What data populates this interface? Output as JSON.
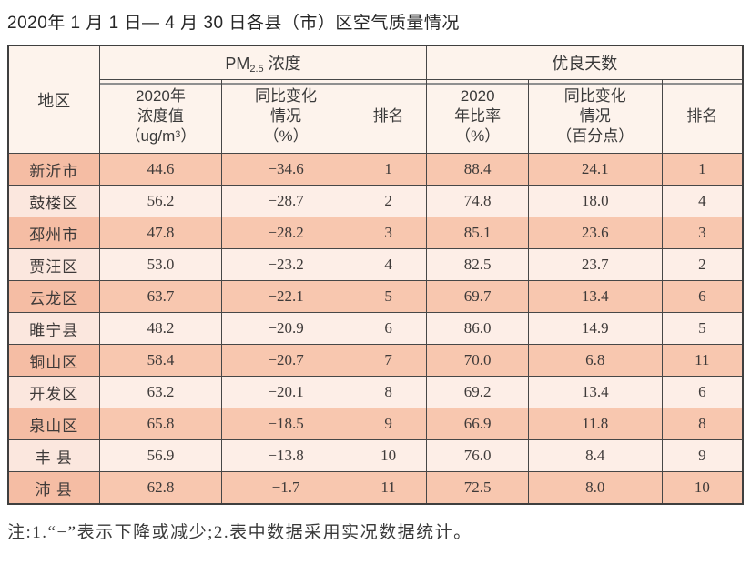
{
  "page": {
    "title": "2020年 1 月 1 日— 4 月 30 日各县（市）区空气质量情况",
    "footnote": "注:1.“−”表示下降或减少;2.表中数据采用实况数据统计。"
  },
  "table": {
    "corner_header": "地区",
    "groups": {
      "pm25": {
        "pre": "PM",
        "sub": "2.5",
        "post": " 浓度"
      },
      "good_days": {
        "label": "优良天数"
      }
    },
    "subheaders": {
      "pm_value": {
        "line1": "2020年",
        "line2": "浓度值",
        "line3_pre": "（ug/m",
        "sup": "3",
        "line3_post": "）"
      },
      "pm_change": {
        "line1": "同比变化",
        "line2": "情况",
        "line3": "（%）"
      },
      "pm_rank": "排名",
      "good_ratio": {
        "line1": "2020",
        "line2": "年比率",
        "line3": "（%）"
      },
      "good_change": {
        "line1": "同比变化",
        "line2": "情况",
        "line3": "（百分点）"
      },
      "good_rank": "排名"
    },
    "rows": [
      [
        "新沂市",
        "44.6",
        "−34.6",
        "1",
        "88.4",
        "24.1",
        "1"
      ],
      [
        "鼓楼区",
        "56.2",
        "−28.7",
        "2",
        "74.8",
        "18.0",
        "4"
      ],
      [
        "邳州市",
        "47.8",
        "−28.2",
        "3",
        "85.1",
        "23.6",
        "3"
      ],
      [
        "贾汪区",
        "53.0",
        "−23.2",
        "4",
        "82.5",
        "23.7",
        "2"
      ],
      [
        "云龙区",
        "63.7",
        "−22.1",
        "5",
        "69.7",
        "13.4",
        "6"
      ],
      [
        "睢宁县",
        "48.2",
        "−20.9",
        "6",
        "86.0",
        "14.9",
        "5"
      ],
      [
        "铜山区",
        "58.4",
        "−20.7",
        "7",
        "70.0",
        "6.8",
        "11"
      ],
      [
        "开发区",
        "63.2",
        "−20.1",
        "8",
        "69.2",
        "13.4",
        "6"
      ],
      [
        "泉山区",
        "65.8",
        "−18.5",
        "9",
        "66.9",
        "11.8",
        "8"
      ],
      [
        "丰 县",
        "56.9",
        "−13.8",
        "10",
        "76.0",
        "8.4",
        "9"
      ],
      [
        "沛 县",
        "62.8",
        "−1.7",
        "11",
        "72.5",
        "8.0",
        "10"
      ]
    ]
  },
  "colors": {
    "row_odd": "#f8c7af",
    "row_even": "#fdeee7",
    "header_bg": "#fdf3ec",
    "border": "#474747",
    "double_line": "#8f8f8f"
  }
}
